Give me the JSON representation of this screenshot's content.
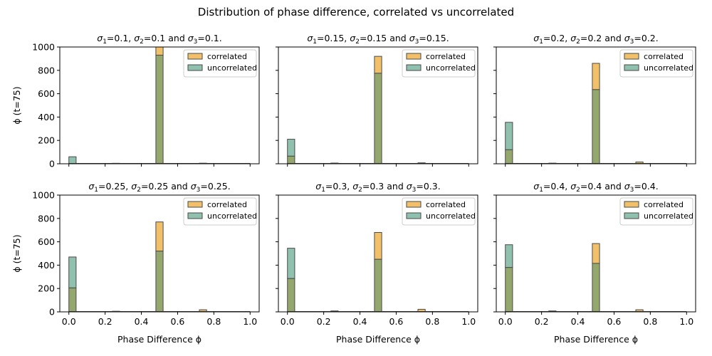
{
  "figure": {
    "suptitle": "Distribution of phase difference, correlated vs uncorrelated"
  },
  "colors": {
    "correlated": "#f2c069",
    "uncorrelated": "#8fc1ae",
    "overlap": "#94a76c",
    "edge": "#4a4a4a"
  },
  "chart_data": [
    {
      "type": "bar",
      "title_sigma": "0.1",
      "xlabel": "",
      "ylabel": "ϕ (t=75)",
      "xlim": [
        -0.05,
        1.05
      ],
      "ylim": [
        0,
        1000
      ],
      "bin_width": 0.04,
      "series": [
        {
          "name": "correlated",
          "x": [
            0.02,
            0.26,
            0.5,
            0.74
          ],
          "values": [
            0,
            4,
            1000,
            5
          ]
        },
        {
          "name": "uncorrelated",
          "x": [
            0.02,
            0.26,
            0.5,
            0.74
          ],
          "values": [
            60,
            2,
            930,
            3
          ]
        }
      ]
    },
    {
      "type": "bar",
      "title_sigma": "0.15",
      "xlabel": "",
      "ylabel": "",
      "xlim": [
        -0.05,
        1.05
      ],
      "ylim": [
        0,
        1000
      ],
      "bin_width": 0.04,
      "series": [
        {
          "name": "correlated",
          "x": [
            0.02,
            0.26,
            0.5,
            0.74
          ],
          "values": [
            65,
            3,
            920,
            8
          ]
        },
        {
          "name": "uncorrelated",
          "x": [
            0.02,
            0.26,
            0.5,
            0.74
          ],
          "values": [
            210,
            6,
            775,
            2
          ]
        }
      ]
    },
    {
      "type": "bar",
      "title_sigma": "0.2",
      "xlabel": "",
      "ylabel": "",
      "xlim": [
        -0.05,
        1.05
      ],
      "ylim": [
        0,
        1000
      ],
      "bin_width": 0.04,
      "series": [
        {
          "name": "correlated",
          "x": [
            0.02,
            0.26,
            0.5,
            0.74
          ],
          "values": [
            120,
            4,
            860,
            15
          ]
        },
        {
          "name": "uncorrelated",
          "x": [
            0.02,
            0.26,
            0.5,
            0.74
          ],
          "values": [
            355,
            5,
            635,
            2
          ]
        }
      ]
    },
    {
      "type": "bar",
      "title_sigma": "0.25",
      "xlabel": "Phase Difference ϕ",
      "ylabel": "ϕ (t=75)",
      "xlim": [
        -0.05,
        1.05
      ],
      "ylim": [
        0,
        1000
      ],
      "bin_width": 0.04,
      "series": [
        {
          "name": "correlated",
          "x": [
            0.02,
            0.26,
            0.5,
            0.74
          ],
          "values": [
            205,
            5,
            770,
            18
          ]
        },
        {
          "name": "uncorrelated",
          "x": [
            0.02,
            0.26,
            0.5,
            0.74
          ],
          "values": [
            470,
            4,
            520,
            2
          ]
        }
      ]
    },
    {
      "type": "bar",
      "title_sigma": "0.3",
      "xlabel": "Phase Difference ϕ",
      "ylabel": "",
      "xlim": [
        -0.05,
        1.05
      ],
      "ylim": [
        0,
        1000
      ],
      "bin_width": 0.04,
      "series": [
        {
          "name": "correlated",
          "x": [
            0.02,
            0.26,
            0.5,
            0.74
          ],
          "values": [
            285,
            8,
            680,
            22
          ]
        },
        {
          "name": "uncorrelated",
          "x": [
            0.02,
            0.26,
            0.5,
            0.74
          ],
          "values": [
            545,
            5,
            450,
            3
          ]
        }
      ]
    },
    {
      "type": "bar",
      "title_sigma": "0.4",
      "xlabel": "Phase Difference ϕ",
      "ylabel": "",
      "xlim": [
        -0.05,
        1.05
      ],
      "ylim": [
        0,
        1000
      ],
      "bin_width": 0.04,
      "series": [
        {
          "name": "correlated",
          "x": [
            0.02,
            0.26,
            0.5,
            0.74
          ],
          "values": [
            380,
            8,
            585,
            18
          ]
        },
        {
          "name": "uncorrelated",
          "x": [
            0.02,
            0.26,
            0.5,
            0.74
          ],
          "values": [
            575,
            5,
            415,
            3
          ]
        }
      ]
    }
  ],
  "axes": {
    "x_ticks": [
      "0.0",
      "0.2",
      "0.4",
      "0.6",
      "0.8",
      "1.0"
    ],
    "y_ticks": [
      "0",
      "200",
      "400",
      "600",
      "800",
      "1000"
    ]
  }
}
